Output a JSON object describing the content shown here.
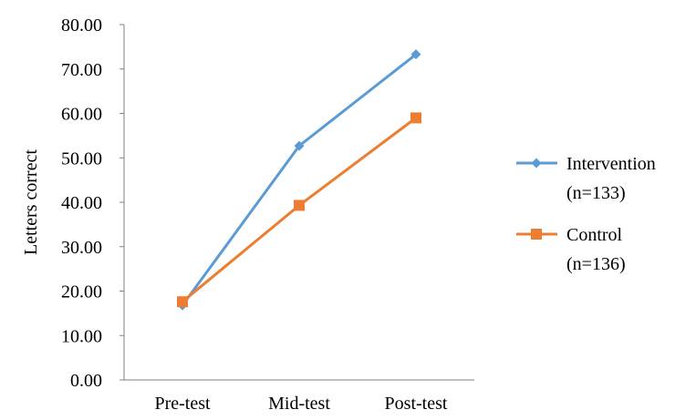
{
  "chart_data": {
    "type": "line",
    "categories": [
      "Pre-test",
      "Mid-test",
      "Post-test"
    ],
    "series": [
      {
        "name": "Intervention",
        "name_line2": "(n=133)",
        "values": [
          16.8,
          52.7,
          73.3
        ],
        "color": "#5B9BD5",
        "marker": "diamond"
      },
      {
        "name": "Control",
        "name_line2": "(n=136)",
        "values": [
          17.6,
          39.3,
          59.0
        ],
        "color": "#ED7D31",
        "marker": "square"
      }
    ],
    "xlabel": "",
    "ylabel": "Letters correct",
    "ylim": [
      0,
      80
    ],
    "yticks": [
      "0.00",
      "10.00",
      "20.00",
      "30.00",
      "40.00",
      "50.00",
      "60.00",
      "70.00",
      "80.00"
    ],
    "grid": false,
    "legend_position": "right"
  }
}
